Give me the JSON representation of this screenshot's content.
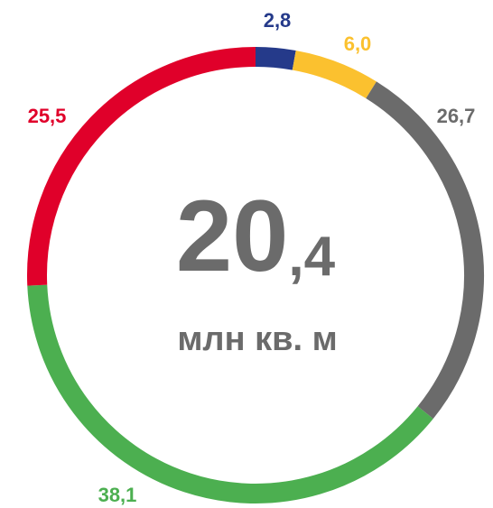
{
  "chart_data": {
    "type": "donut",
    "categories": [
      null,
      null,
      null,
      null,
      null
    ],
    "values": [
      2.8,
      6.0,
      26.7,
      38.1,
      25.5
    ],
    "value_labels": [
      "2,8",
      "6,0",
      "26,7",
      "38,1",
      "25,5"
    ],
    "colors": [
      "#253a8a",
      "#fbc12f",
      "#6b6b6b",
      "#4caf50",
      "#e0002a"
    ],
    "center_parts": [
      "20",
      ",4"
    ],
    "center_unit": "млн кв. м"
  }
}
